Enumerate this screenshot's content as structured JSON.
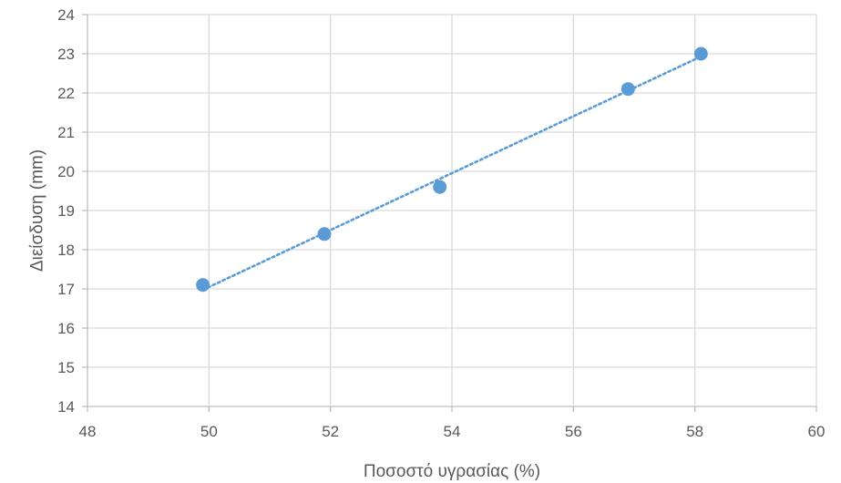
{
  "chart_data": {
    "type": "scatter",
    "title": "",
    "xlabel": "Ποσοστό υγρασίας (%)",
    "ylabel": "Διείσδυση (mm)",
    "xlim": [
      48,
      60
    ],
    "ylim": [
      14,
      24
    ],
    "xticks": [
      48,
      50,
      52,
      54,
      56,
      58,
      60
    ],
    "yticks": [
      14,
      15,
      16,
      17,
      18,
      19,
      20,
      21,
      22,
      23,
      24
    ],
    "grid": true,
    "legend": "none",
    "trendline": "linear, dotted",
    "colors": {
      "points": "#5B9BD5",
      "trendline": "#5B9BD5",
      "grid": "#D9D9D9",
      "axis": "#BFBFBF",
      "text": "#595959"
    },
    "series": [
      {
        "x": [
          49.9,
          51.9,
          53.8,
          56.9,
          58.1
        ],
        "y": [
          17.1,
          18.4,
          19.6,
          22.1,
          23.0
        ]
      }
    ]
  }
}
